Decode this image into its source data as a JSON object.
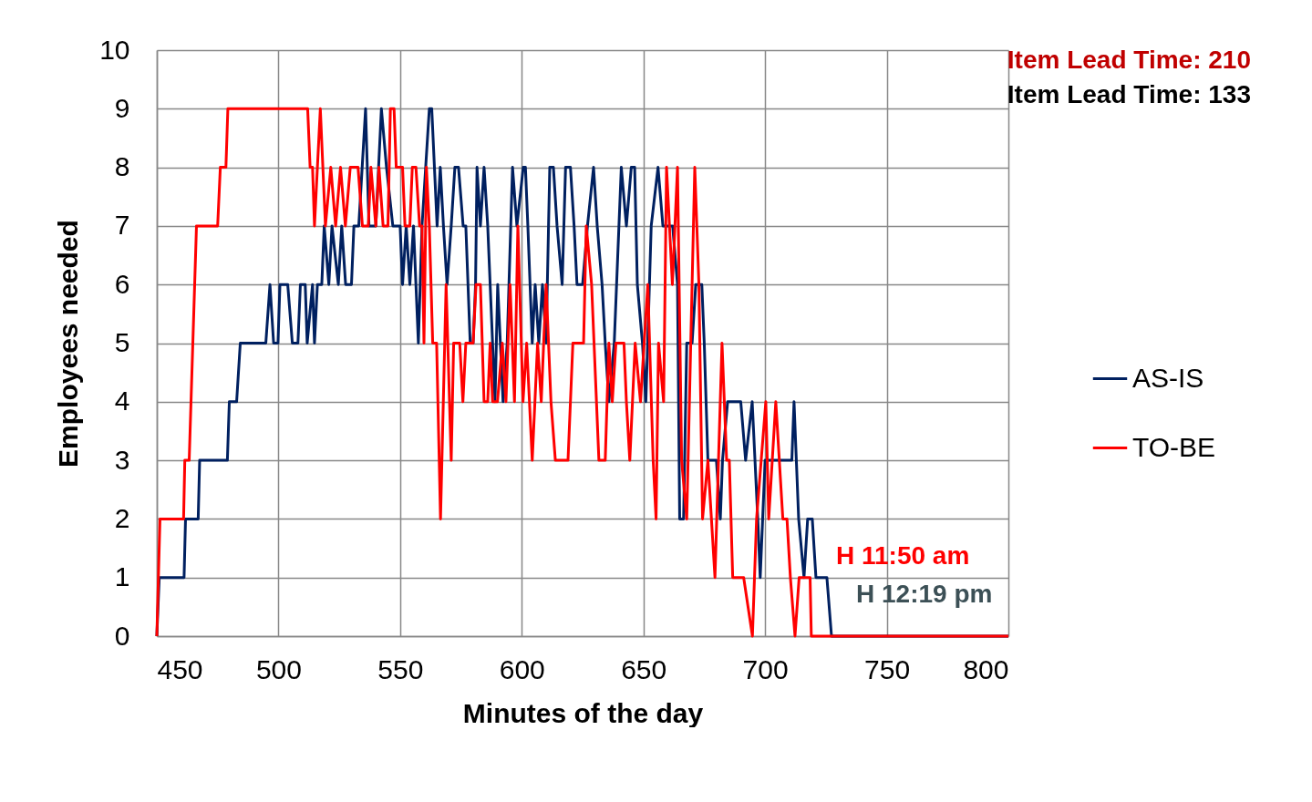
{
  "chart_data": {
    "type": "line",
    "xlabel": "Minutes of the day",
    "ylabel": "Employees needed",
    "xlim": [
      450,
      800
    ],
    "ylim": [
      0,
      10
    ],
    "xticks": [
      450,
      500,
      550,
      600,
      650,
      700,
      750,
      800
    ],
    "yticks": [
      0,
      1,
      2,
      3,
      4,
      5,
      6,
      7,
      8,
      9,
      10
    ],
    "grid": true,
    "legend": "right",
    "marker": "none",
    "line_style": "solid",
    "annotations": [
      "Item Lead Time: 210",
      "Item Lead Time: 133",
      "H 11:50 am",
      "H 12:19 pm"
    ],
    "series": [
      {
        "name": "AS-IS",
        "color": "#002060",
        "x": [
          450,
          451,
          461.2,
          461.8,
          467,
          467.6,
          479,
          479.8,
          482.8,
          484.3,
          494.8,
          496.5,
          498,
          499.8,
          500.6,
          503.8,
          505.7,
          508,
          509,
          511,
          511.8,
          514,
          514.8,
          516,
          517.8,
          518.8,
          520.7,
          522,
          524.6,
          526,
          527.6,
          530,
          531,
          533,
          535.8,
          537.2,
          540,
          542.3,
          544.4,
          547,
          550,
          551,
          552.5,
          554,
          555.5,
          557.5,
          559,
          562,
          563,
          565.2,
          566.5,
          567.8,
          569.3,
          571,
          572.5,
          574,
          575.9,
          577,
          578.8,
          580,
          581,
          581.6,
          583,
          584.5,
          586,
          589,
          590.1,
          592.3,
          594,
          596.2,
          598,
          600.6,
          601.5,
          602.5,
          604.3,
          605.5,
          607,
          608.5,
          610,
          611.5,
          613,
          614.5,
          616.6,
          618,
          620,
          621.5,
          622.7,
          625,
          627,
          629.5,
          631,
          633,
          634.3,
          635.8,
          638,
          640.9,
          643,
          645,
          646.4,
          647.5,
          649.6,
          651,
          653.2,
          656,
          658,
          662,
          664,
          664.9,
          666.5,
          667.8,
          670,
          671.5,
          674,
          675,
          676.5,
          680,
          681.6,
          682.5,
          684.6,
          690,
          692,
          694.7,
          697,
          698,
          700,
          711,
          711.9,
          713.8,
          716,
          717.5,
          719.4,
          720.9,
          725.4,
          727.3,
          800
        ],
        "values": [
          0,
          1,
          1,
          2,
          2,
          3,
          3,
          4,
          4,
          5,
          5,
          6,
          5,
          5,
          6,
          6,
          5,
          5,
          6,
          6,
          5,
          6,
          5,
          6,
          6,
          7,
          6,
          7,
          6,
          7,
          6,
          6,
          7,
          7,
          9,
          7,
          7,
          9,
          8,
          7,
          7,
          6,
          7,
          6,
          7,
          5,
          7,
          9,
          9,
          7,
          8,
          7,
          6,
          7,
          8,
          8,
          7,
          7,
          5,
          5,
          6,
          8,
          7,
          8,
          7,
          4,
          6,
          4,
          5,
          8,
          7,
          8,
          8,
          7,
          5,
          6,
          5,
          6,
          5,
          8,
          8,
          7,
          6,
          8,
          8,
          7,
          6,
          6,
          7,
          8,
          7,
          6,
          5,
          4,
          5,
          8,
          7,
          8,
          8,
          6,
          5,
          4,
          7,
          8,
          7,
          7,
          6,
          2,
          2,
          5,
          5,
          6,
          6,
          5,
          3,
          3,
          2,
          3,
          4,
          4,
          3,
          4,
          2,
          1,
          3,
          3,
          4,
          2,
          1,
          2,
          2,
          1,
          1,
          0,
          0
        ]
      },
      {
        "name": "TO-BE",
        "color": "#ff0000",
        "x": [
          450,
          451.3,
          461,
          461.5,
          463.3,
          466.3,
          475,
          476.1,
          478.4,
          479.2,
          512,
          513,
          514,
          514.8,
          517.2,
          519.3,
          521.5,
          523.5,
          525.5,
          527.5,
          529.5,
          532.7,
          534.5,
          536.9,
          538,
          540,
          541.3,
          543,
          545,
          546,
          547.5,
          548.4,
          551,
          552,
          554,
          555,
          556.5,
          558,
          559,
          559.8,
          560.8,
          562,
          563.4,
          565,
          566.6,
          568.9,
          571,
          572,
          574.5,
          575.8,
          577,
          580,
          581.2,
          583,
          584.5,
          586,
          587,
          588,
          590,
          592,
          593.5,
          595.2,
          597,
          598.4,
          600.5,
          602,
          604.3,
          606.5,
          608,
          610,
          612,
          613.8,
          619,
          621,
          623.2,
          625.4,
          626.5,
          628.7,
          631.7,
          634.3,
          635.8,
          637.2,
          638.7,
          642,
          643,
          644.4,
          646.6,
          648.8,
          651.8,
          654,
          655.2,
          656.2,
          658.3,
          659.5,
          661.9,
          664,
          665.7,
          667.8,
          671.1,
          672.8,
          674.3,
          676.5,
          679.4,
          682.3,
          684.2,
          685.3,
          686.7,
          691.2,
          694.8,
          696.5,
          700.3,
          701.5,
          704.4,
          707.3,
          709,
          710.4,
          712.3,
          714,
          718.5,
          719,
          800
        ],
        "values": [
          0,
          2,
          2,
          3,
          3,
          7,
          7,
          8,
          8,
          9,
          9,
          8,
          8,
          7,
          9,
          7,
          8,
          7,
          8,
          7,
          8,
          8,
          7,
          7,
          8,
          7,
          8,
          7,
          7,
          9,
          9,
          8,
          8,
          7,
          7,
          8,
          8,
          7,
          7,
          5,
          8,
          7,
          5,
          5,
          2,
          6,
          3,
          5,
          5,
          4,
          5,
          5,
          6,
          6,
          4,
          4,
          5,
          4,
          4,
          5,
          4,
          6,
          4,
          7,
          4,
          5,
          3,
          5,
          4,
          6,
          4,
          3,
          3,
          5,
          5,
          5,
          7,
          6,
          3,
          3,
          5,
          4,
          5,
          5,
          4,
          3,
          5,
          4,
          6,
          3,
          2,
          5,
          4,
          8,
          6,
          8,
          3,
          2,
          8,
          6,
          2,
          3,
          1,
          5,
          3,
          3,
          1,
          1,
          0,
          2,
          4,
          2,
          4,
          2,
          2,
          1,
          0,
          1,
          1,
          0,
          0
        ]
      }
    ]
  }
}
